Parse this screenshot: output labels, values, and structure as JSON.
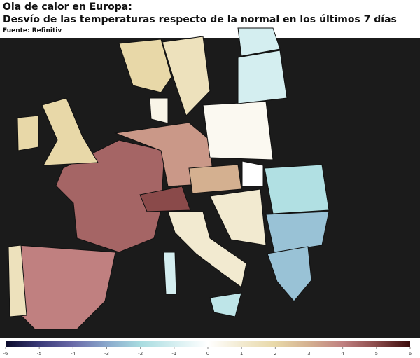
{
  "chart_data": {
    "type": "choropleth",
    "title": "Ola de calor en Europa:",
    "subtitle": "Desvío de las temperaturas respecto de la normal en los últimos 7 días",
    "source": "Fuente: Refinitiv",
    "values": [
      4,
      1.5,
      4.5,
      2,
      2,
      3.5,
      5,
      1,
      -1.5,
      -1,
      3,
      0.3,
      1,
      -1.8,
      -2.5,
      -2.5,
      -1,
      1.5,
      2,
      0.5,
      -1,
      0
    ],
    "zlim": [
      -6,
      6
    ],
    "zticks": [
      -6,
      -5,
      -4,
      -3,
      -2,
      -1,
      0,
      1,
      2,
      3,
      4,
      5,
      6
    ],
    "colorscale": [
      "#0a0a2a",
      "#3a3a78",
      "#6a6aa8",
      "#8aa8cc",
      "#a8dce0",
      "#d4eef0",
      "#ffffff",
      "#f2ead0",
      "#e8d8a8",
      "#d4b090",
      "#c08080",
      "#8a4a4a",
      "#3a0a0a"
    ]
  }
}
